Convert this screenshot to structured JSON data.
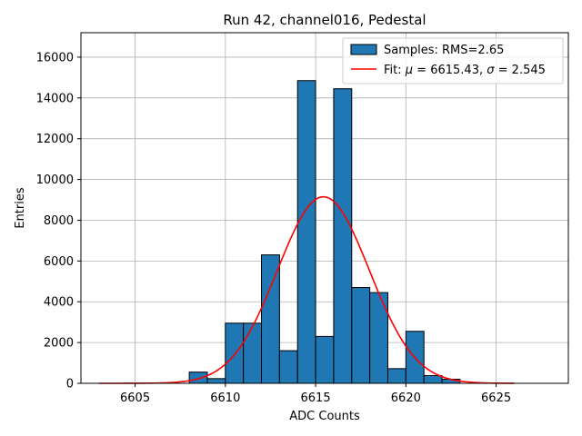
{
  "chart_data": {
    "type": "bar",
    "title": "Run 42, channel016, Pedestal",
    "xlabel": "ADC Counts",
    "ylabel": "Entries",
    "xlim": [
      6602.0,
      6629.0
    ],
    "ylim": [
      0,
      17200
    ],
    "xticks": [
      6605,
      6610,
      6615,
      6620,
      6625
    ],
    "yticks": [
      0,
      2000,
      4000,
      6000,
      8000,
      10000,
      12000,
      14000,
      16000
    ],
    "grid": true,
    "legend_position": "top-right",
    "colors": {
      "bar": "#1f77b4",
      "bar_edge": "#000000",
      "fit_line": "#ff0000",
      "grid": "#b0b0b0"
    },
    "histogram": {
      "name": "Samples: RMS=2.65",
      "bins": [
        {
          "x0": 6608.0,
          "x1": 6609.0,
          "count": 550
        },
        {
          "x0": 6609.0,
          "x1": 6610.0,
          "count": 230
        },
        {
          "x0": 6610.0,
          "x1": 6611.0,
          "count": 2950
        },
        {
          "x0": 6611.0,
          "x1": 6612.0,
          "count": 2950
        },
        {
          "x0": 6612.0,
          "x1": 6613.0,
          "count": 6300
        },
        {
          "x0": 6613.0,
          "x1": 6614.0,
          "count": 1600
        },
        {
          "x0": 6614.0,
          "x1": 6615.0,
          "count": 14850
        },
        {
          "x0": 6615.0,
          "x1": 6616.0,
          "count": 2300
        },
        {
          "x0": 6616.0,
          "x1": 6617.0,
          "count": 14450
        },
        {
          "x0": 6617.0,
          "x1": 6618.0,
          "count": 4700
        },
        {
          "x0": 6618.0,
          "x1": 6619.0,
          "count": 4450
        },
        {
          "x0": 6619.0,
          "x1": 6620.0,
          "count": 720
        },
        {
          "x0": 6620.0,
          "x1": 6621.0,
          "count": 2550
        },
        {
          "x0": 6621.0,
          "x1": 6622.0,
          "count": 380
        },
        {
          "x0": 6622.0,
          "x1": 6623.0,
          "count": 200
        }
      ]
    },
    "fit": {
      "name_prefix": "Fit: ",
      "mu_symbol": "μ",
      "sigma_symbol": "σ",
      "mu_value": "6615.43",
      "sigma_value": "2.545",
      "amplitude": 9150,
      "mu": 6615.43,
      "sigma": 2.545,
      "x_range": [
        6603.0,
        6626.0
      ]
    }
  }
}
